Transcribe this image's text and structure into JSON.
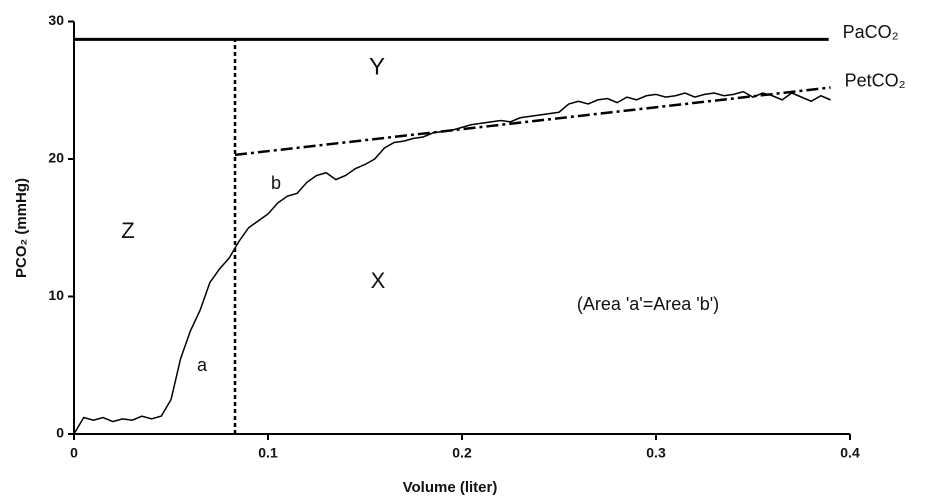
{
  "chart_data": {
    "type": "line",
    "x_label": "Volume (liter)",
    "y_label": "PCO₂ (mmHg)",
    "xlim": [
      0,
      0.4
    ],
    "ylim": [
      0,
      30
    ],
    "xticks": [
      0,
      0.1,
      0.2,
      0.3,
      0.4
    ],
    "yticks": [
      0,
      10,
      20,
      30
    ],
    "color": "#000000",
    "x": [
      0,
      0.005,
      0.01,
      0.015,
      0.02,
      0.025,
      0.03,
      0.035,
      0.04,
      0.045,
      0.05,
      0.055,
      0.06,
      0.065,
      0.07,
      0.075,
      0.08,
      0.085,
      0.09,
      0.095,
      0.1,
      0.105,
      0.11,
      0.115,
      0.12,
      0.125,
      0.13,
      0.135,
      0.14,
      0.145,
      0.15,
      0.155,
      0.16,
      0.165,
      0.17,
      0.175,
      0.18,
      0.185,
      0.19,
      0.195,
      0.2,
      0.205,
      0.21,
      0.215,
      0.22,
      0.225,
      0.23,
      0.235,
      0.24,
      0.245,
      0.25,
      0.255,
      0.26,
      0.265,
      0.27,
      0.275,
      0.28,
      0.285,
      0.29,
      0.295,
      0.3,
      0.305,
      0.31,
      0.315,
      0.32,
      0.325,
      0.33,
      0.335,
      0.34,
      0.345,
      0.35,
      0.355,
      0.36,
      0.365,
      0.37,
      0.375,
      0.38,
      0.385,
      0.39
    ],
    "values": [
      0,
      1.2,
      1.0,
      1.2,
      0.9,
      1.1,
      1.0,
      1.3,
      1.1,
      1.3,
      2.5,
      5.5,
      7.5,
      9,
      11,
      12,
      12.8,
      14,
      15,
      15.5,
      16,
      16.8,
      17.3,
      17.5,
      18.3,
      18.8,
      19.0,
      18.5,
      18.8,
      19.3,
      19.6,
      20.0,
      20.8,
      21.2,
      21.3,
      21.5,
      21.6,
      21.9,
      22.0,
      22.1,
      22.3,
      22.5,
      22.6,
      22.7,
      22.8,
      22.7,
      23.0,
      23.1,
      23.2,
      23.3,
      23.4,
      24.0,
      24.2,
      24.0,
      24.3,
      24.4,
      24.1,
      24.5,
      24.3,
      24.6,
      24.7,
      24.5,
      24.6,
      24.8,
      24.5,
      24.7,
      24.8,
      24.6,
      24.7,
      24.9,
      24.5,
      24.8,
      24.6,
      24.3,
      24.8,
      24.5,
      24.2,
      24.6,
      24.3
    ],
    "reference_lines": [
      {
        "name": "PaCO₂",
        "style": "solid",
        "x": [
          0,
          0.389
        ],
        "values": [
          28.7,
          28.7
        ]
      },
      {
        "name": "PetCO₂",
        "style": "dashdot",
        "x": [
          0.083,
          0.39
        ],
        "values": [
          20.3,
          25.2
        ]
      }
    ],
    "threshold_x": 0.083,
    "threshold_top": 28.7,
    "annotations": [
      "Y",
      "Z",
      "X",
      "b",
      "a",
      "(Area 'a'=Area 'b')"
    ]
  }
}
